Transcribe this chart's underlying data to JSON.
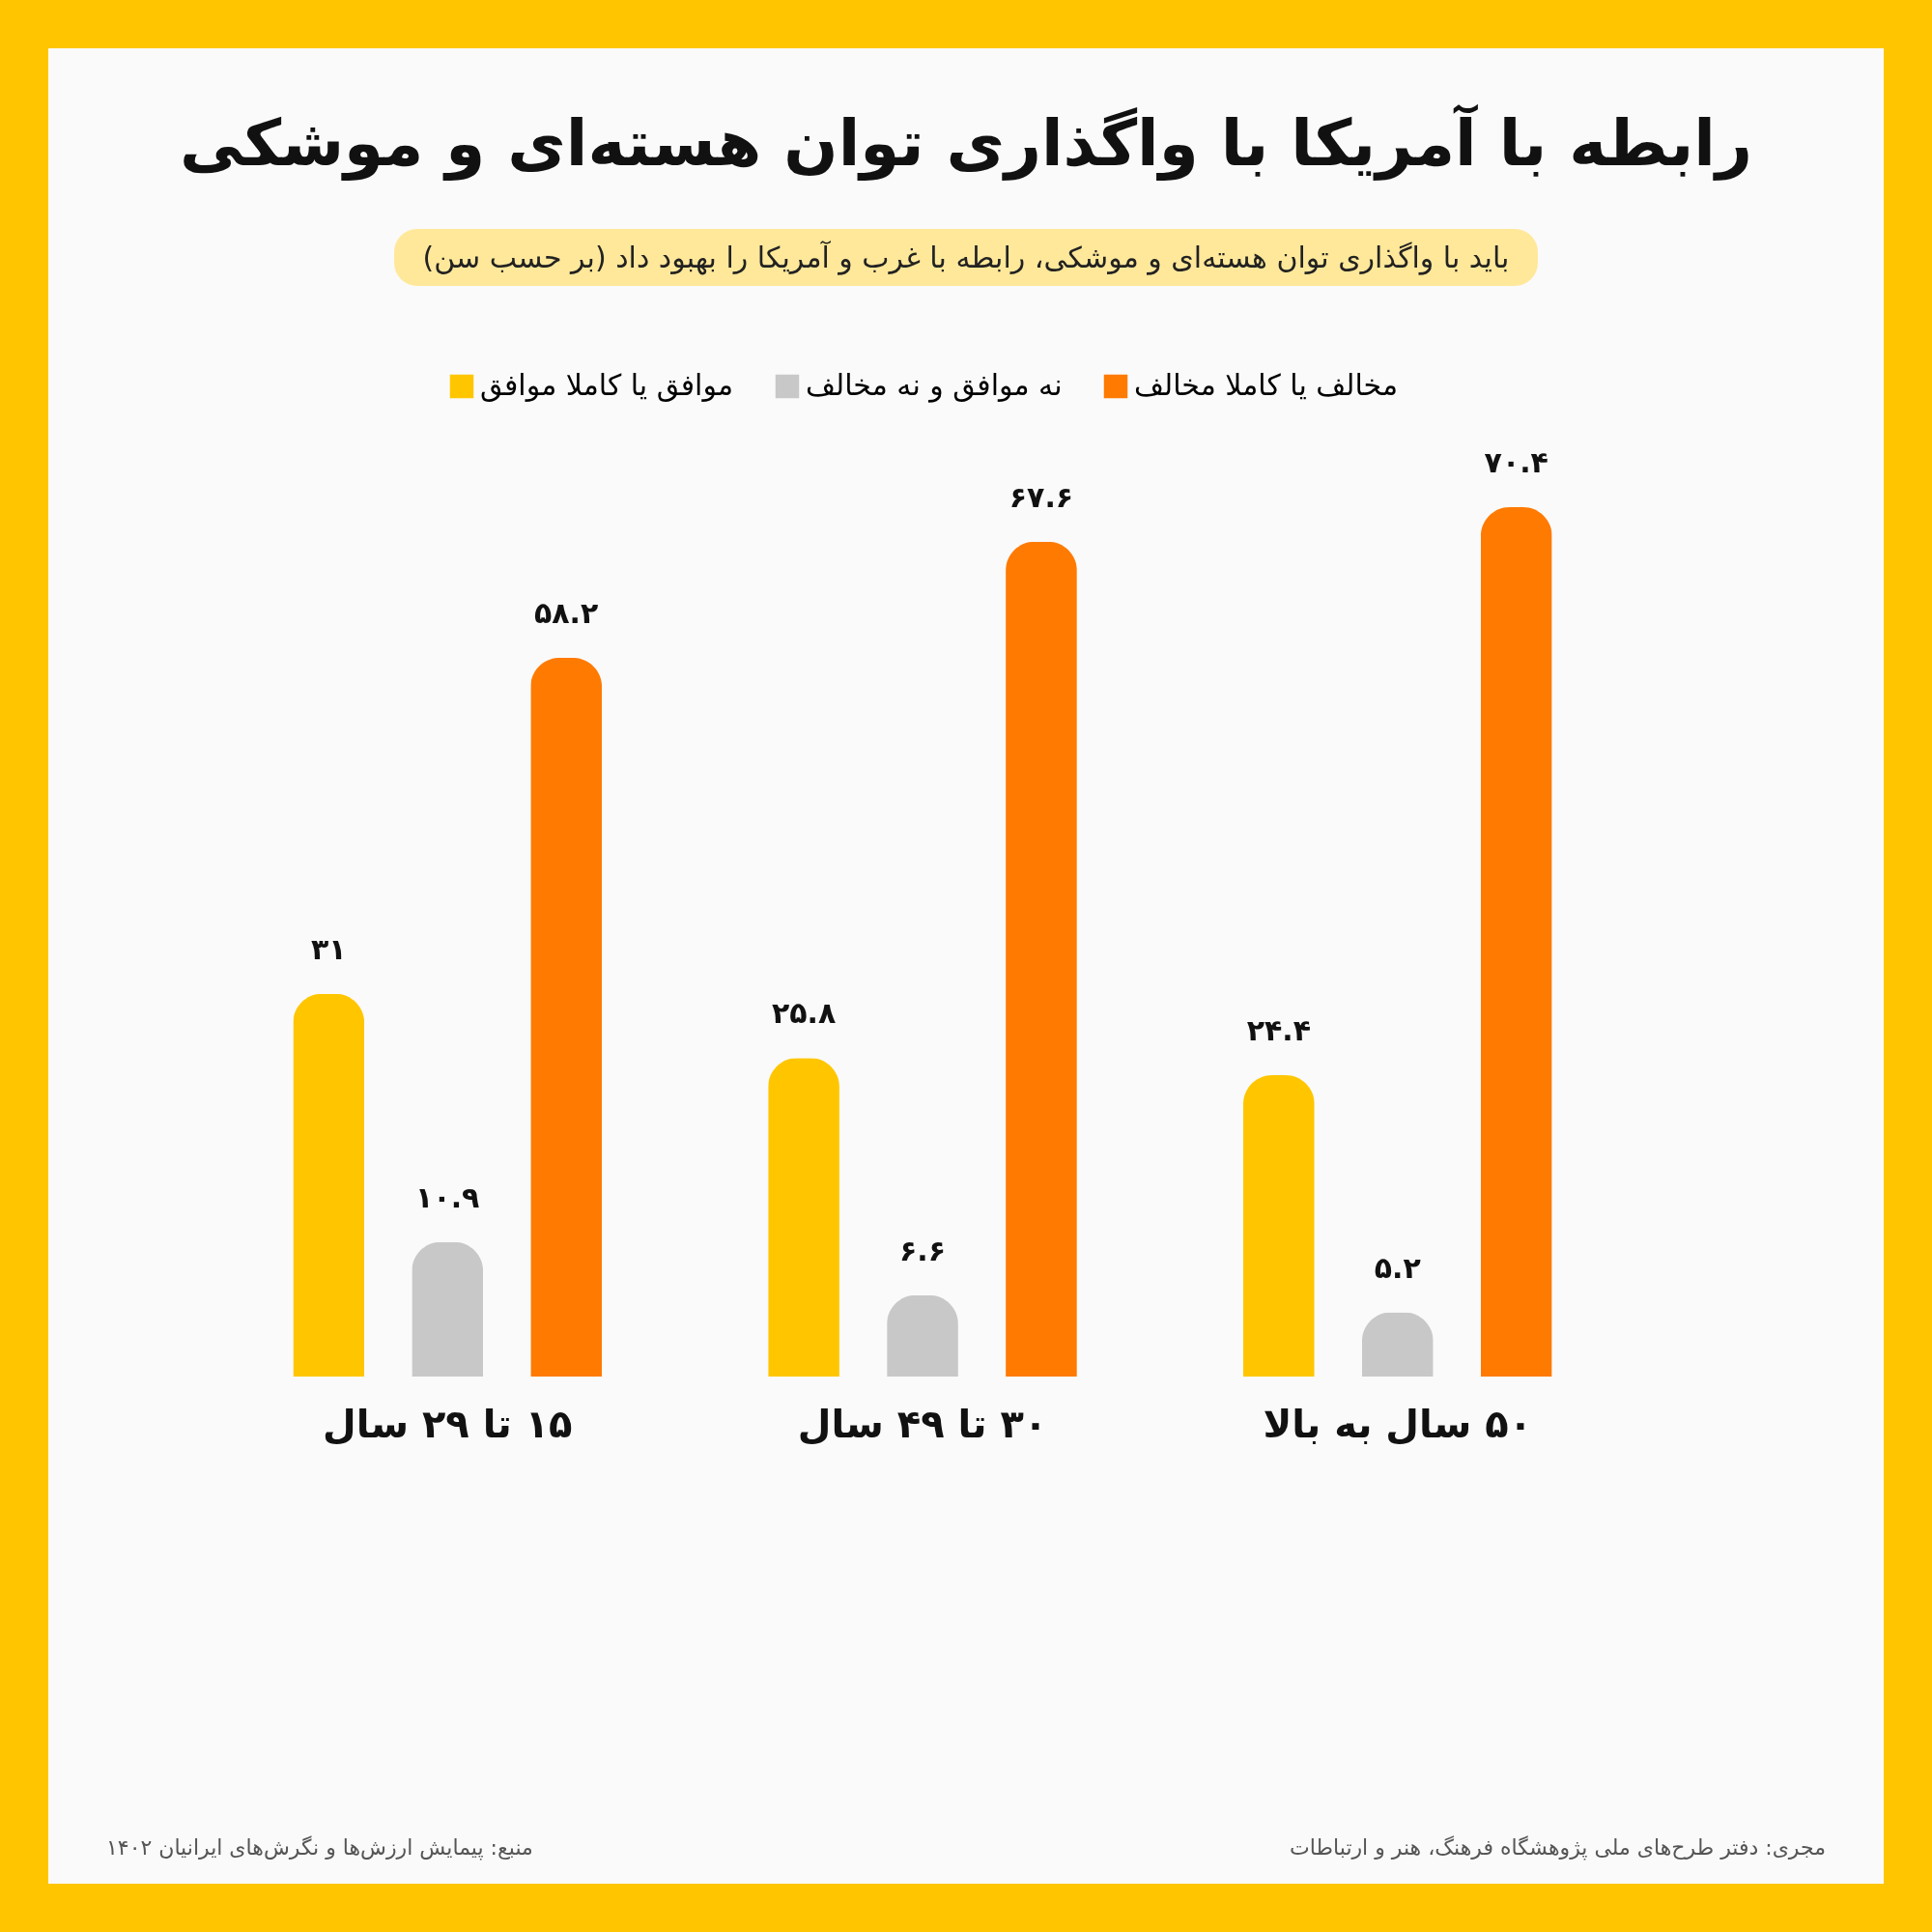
{
  "chart_data": {
    "type": "bar",
    "title": "رابطه با آمریکا با واگذاری توان هسته‌ای و موشکی",
    "subtitle": "باید با واگذاری توان هسته‌ای و موشکی، رابطه با غرب و آمریکا را بهبود داد (بر حسب سن)",
    "categories": [
      "۱۵ تا ۲۹ سال",
      "۳۰ تا ۴۹ سال",
      "۵۰ سال به بالا"
    ],
    "series": [
      {
        "name": "موافق یا کاملا موافق",
        "color": "#ffc600",
        "values": [
          31,
          25.8,
          24.4
        ],
        "value_labels": [
          "۳۱",
          "۲۵.۸",
          "۲۴.۴"
        ]
      },
      {
        "name": "نه موافق و نه مخالف",
        "color": "#c8c8c8",
        "values": [
          10.9,
          6.6,
          5.2
        ],
        "value_labels": [
          "۱۰.۹",
          "۶.۶",
          "۵.۲"
        ]
      },
      {
        "name": "مخالف یا کاملا مخالف",
        "color": "#ff7a00",
        "values": [
          58.2,
          67.6,
          70.4
        ],
        "value_labels": [
          "۵۸.۲",
          "۶۷.۶",
          "۷۰.۴"
        ]
      }
    ],
    "legend": "top",
    "grid": false,
    "annotations": [
      "منبع: پیمایش ارزش‌ها و نگرش‌های ایرانیان ۱۴۰۲",
      "مجری: دفتر طرح‌های ملی پژوهشگاه فرهنگ، هنر و ارتباطات"
    ]
  }
}
